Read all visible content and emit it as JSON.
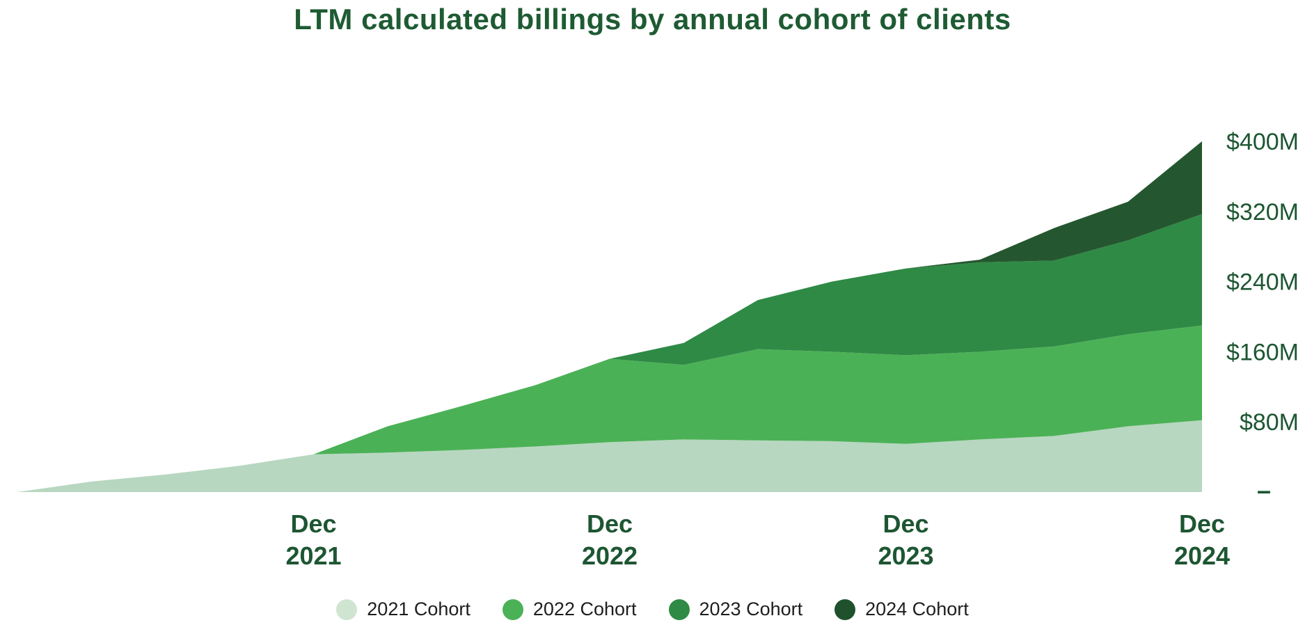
{
  "chart_data": {
    "type": "area",
    "stacked": true,
    "grid": false,
    "legend_position": "bottom",
    "title": "LTM calculated billings by annual cohort of clients",
    "x": [
      0,
      3,
      6,
      9,
      12,
      15,
      18,
      21,
      24,
      27,
      30,
      33,
      36,
      39,
      42,
      45,
      48
    ],
    "series": [
      {
        "name": "2021 Cohort",
        "color": "#b7d7c0",
        "legend_color": "#cfe5d2",
        "values": [
          0,
          12,
          20,
          30,
          43,
          45,
          48,
          52,
          57,
          60,
          59,
          58,
          55,
          60,
          64,
          75,
          82
        ]
      },
      {
        "name": "2022 Cohort",
        "color": "#4bb156",
        "legend_color": "#4bb156",
        "values": [
          0,
          0,
          0,
          0,
          0,
          30,
          50,
          70,
          95,
          85,
          104,
          102,
          101,
          100,
          102,
          105,
          108
        ]
      },
      {
        "name": "2023 Cohort",
        "color": "#2f8a45",
        "legend_color": "#2f8a45",
        "values": [
          0,
          0,
          0,
          0,
          0,
          0,
          0,
          0,
          0,
          25,
          56,
          80,
          99,
          102,
          98,
          107,
          127
        ]
      },
      {
        "name": "2024 Cohort",
        "color": "#24572f",
        "legend_color": "#1e512c",
        "values": [
          0,
          0,
          0,
          0,
          0,
          0,
          0,
          0,
          0,
          0,
          0,
          0,
          0,
          3,
          37,
          44,
          83
        ]
      }
    ],
    "x_ticks": [
      {
        "pos": 12,
        "line1": "Dec",
        "line2": "2021"
      },
      {
        "pos": 24,
        "line1": "Dec",
        "line2": "2022"
      },
      {
        "pos": 36,
        "line1": "Dec",
        "line2": "2023"
      },
      {
        "pos": 48,
        "line1": "Dec",
        "line2": "2024"
      }
    ],
    "y_ticks": [
      {
        "value": 400,
        "label": "$400M"
      },
      {
        "value": 320,
        "label": "$320M"
      },
      {
        "value": 240,
        "label": "$240M"
      },
      {
        "value": 160,
        "label": "$160M"
      },
      {
        "value": 80,
        "label": "$80M"
      }
    ],
    "baseline_tick_label": "–",
    "ylim": [
      0,
      400
    ],
    "colors": {
      "title_text": "#1e5b33",
      "axis_text": "#1d5632",
      "legend_text": "#1e1e1e"
    }
  }
}
